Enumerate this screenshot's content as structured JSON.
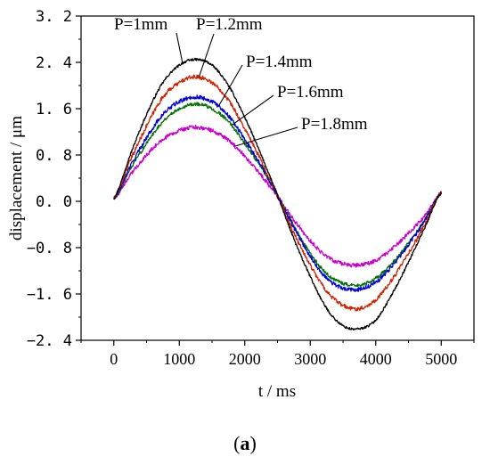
{
  "chart_data": {
    "type": "line",
    "xlabel": "t / ms",
    "ylabel": "displacement / μm",
    "xlim": [
      -500,
      5500
    ],
    "ylim": [
      -2.4,
      3.2
    ],
    "xticks": [
      0,
      1000,
      2000,
      3000,
      4000,
      5000
    ],
    "xtick_labels": [
      "0",
      "1000",
      "2000",
      "3000",
      "4000",
      "5000"
    ],
    "yticks": [
      -2.4,
      -1.6,
      -0.8,
      0.0,
      0.8,
      1.6,
      2.4,
      3.2
    ],
    "ytick_labels": [
      "−2. 4",
      "−1. 6",
      "−0. 8",
      "0. 0",
      "0. 8",
      "1. 6",
      "2. 4",
      "3. 2"
    ],
    "x": [
      0,
      250,
      500,
      750,
      1000,
      1250,
      1500,
      1750,
      2000,
      2250,
      2500,
      2750,
      3000,
      3250,
      3500,
      3750,
      4000,
      4250,
      4500,
      4750,
      5000
    ],
    "series": [
      {
        "name": "P=1mm",
        "color": "#000000",
        "values": [
          0.05,
          0.8,
          1.5,
          2.05,
          2.35,
          2.45,
          2.35,
          2.0,
          1.45,
          0.8,
          0.1,
          -0.65,
          -1.3,
          -1.85,
          -2.15,
          -2.2,
          -2.05,
          -1.6,
          -1.05,
          -0.45,
          0.15
        ]
      },
      {
        "name": "P=1.2mm",
        "color": "#d02000",
        "values": [
          0.05,
          0.7,
          1.3,
          1.8,
          2.05,
          2.15,
          2.05,
          1.75,
          1.25,
          0.7,
          0.1,
          -0.55,
          -1.1,
          -1.55,
          -1.8,
          -1.85,
          -1.7,
          -1.35,
          -0.9,
          -0.4,
          0.15
        ]
      },
      {
        "name": "P=1.4mm",
        "color": "#0000dd",
        "values": [
          0.05,
          0.6,
          1.1,
          1.5,
          1.72,
          1.8,
          1.72,
          1.48,
          1.07,
          0.62,
          0.1,
          -0.45,
          -0.95,
          -1.33,
          -1.5,
          -1.52,
          -1.4,
          -1.12,
          -0.75,
          -0.33,
          0.15
        ]
      },
      {
        "name": "P=1.6mm",
        "color": "#007000",
        "values": [
          0.05,
          0.55,
          1.0,
          1.38,
          1.6,
          1.68,
          1.6,
          1.38,
          1.0,
          0.58,
          0.1,
          -0.42,
          -0.9,
          -1.25,
          -1.42,
          -1.45,
          -1.33,
          -1.07,
          -0.72,
          -0.32,
          0.15
        ]
      },
      {
        "name": "P=1.8mm",
        "color": "#cc00cc",
        "values": [
          0.05,
          0.45,
          0.8,
          1.07,
          1.22,
          1.28,
          1.22,
          1.05,
          0.78,
          0.45,
          0.08,
          -0.32,
          -0.68,
          -0.95,
          -1.08,
          -1.1,
          -1.02,
          -0.82,
          -0.55,
          -0.25,
          0.15
        ]
      }
    ],
    "annotations": [
      {
        "text": "P=1mm",
        "series": 0,
        "point_x": 1050
      },
      {
        "text": "P=1.2mm",
        "series": 1,
        "point_x": 1300
      },
      {
        "text": "P=1.4mm",
        "series": 2,
        "point_x": 1600
      },
      {
        "text": "P=1.6mm",
        "series": 3,
        "point_x": 1800
      },
      {
        "text": "P=1.8mm",
        "series": 4,
        "point_x": 1850
      }
    ],
    "grid": false,
    "panel_label": "(a)"
  }
}
